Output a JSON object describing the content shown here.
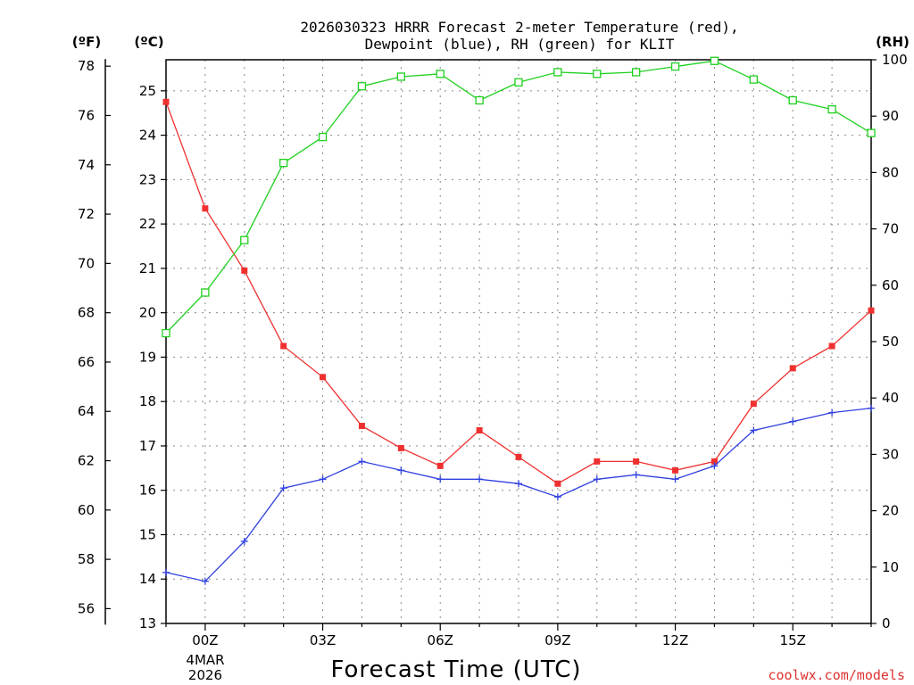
{
  "title_lines": [
    "2026030323 HRRR Forecast 2-meter Temperature (red),",
    "Dewpoint (blue), RH (green) for KLIT"
  ],
  "unit_labels": {
    "left_outer": "(ºF)",
    "left_inner": "(ºC)",
    "right": "(RH)"
  },
  "credit": "coolwx.com/models",
  "colors": {
    "temperature": "#f03030",
    "dewpoint": "#3040e0",
    "rh": "#20d020",
    "grid": "#888888"
  },
  "chart_data": {
    "type": "line",
    "xlabel": "Forecast Time (UTC)",
    "x_tick_labels": [
      "00Z",
      "03Z",
      "06Z",
      "09Z",
      "12Z",
      "15Z"
    ],
    "x_tick_hours": [
      0,
      3,
      6,
      9,
      12,
      15
    ],
    "date_label": [
      "4MAR",
      "2026"
    ],
    "xlim_hours": [
      -1,
      17
    ],
    "x_hours": [
      -1,
      0,
      1,
      2,
      3,
      4,
      5,
      6,
      7,
      8,
      9,
      10,
      11,
      12,
      13,
      14,
      15,
      16,
      17
    ],
    "y_celsius": {
      "lim": [
        13,
        25.7
      ],
      "ticks": [
        13,
        14,
        15,
        16,
        17,
        18,
        19,
        20,
        21,
        22,
        23,
        24,
        25
      ]
    },
    "y_fahrenheit": {
      "ticks": [
        56,
        58,
        60,
        62,
        64,
        66,
        68,
        70,
        72,
        74,
        76,
        78
      ]
    },
    "y_rh": {
      "lim": [
        0,
        100
      ],
      "ticks": [
        0,
        10,
        20,
        30,
        40,
        50,
        60,
        70,
        80,
        90,
        100
      ]
    },
    "grid": true,
    "series": [
      {
        "name": "Temperature",
        "axis": "celsius",
        "marker": "filled-square",
        "values": [
          24.75,
          22.35,
          20.95,
          19.25,
          18.55,
          17.45,
          16.95,
          16.55,
          17.35,
          16.75,
          16.15,
          16.65,
          16.65,
          16.45,
          16.65,
          17.95,
          18.75,
          19.25,
          20.05
        ]
      },
      {
        "name": "Dewpoint",
        "axis": "celsius",
        "marker": "plus",
        "values": [
          14.15,
          13.95,
          14.85,
          16.05,
          16.25,
          16.65,
          16.45,
          16.25,
          16.25,
          16.15,
          15.85,
          16.25,
          16.35,
          16.25,
          16.55,
          17.35,
          17.55,
          17.75,
          17.85
        ]
      },
      {
        "name": "RH",
        "axis": "rh",
        "marker": "open-square",
        "values": [
          51.5,
          58.7,
          68.0,
          81.7,
          86.3,
          95.3,
          97.0,
          97.5,
          92.8,
          96.0,
          97.8,
          97.5,
          97.8,
          98.8,
          99.8,
          96.5,
          92.8,
          91.2,
          87.0
        ]
      }
    ]
  }
}
